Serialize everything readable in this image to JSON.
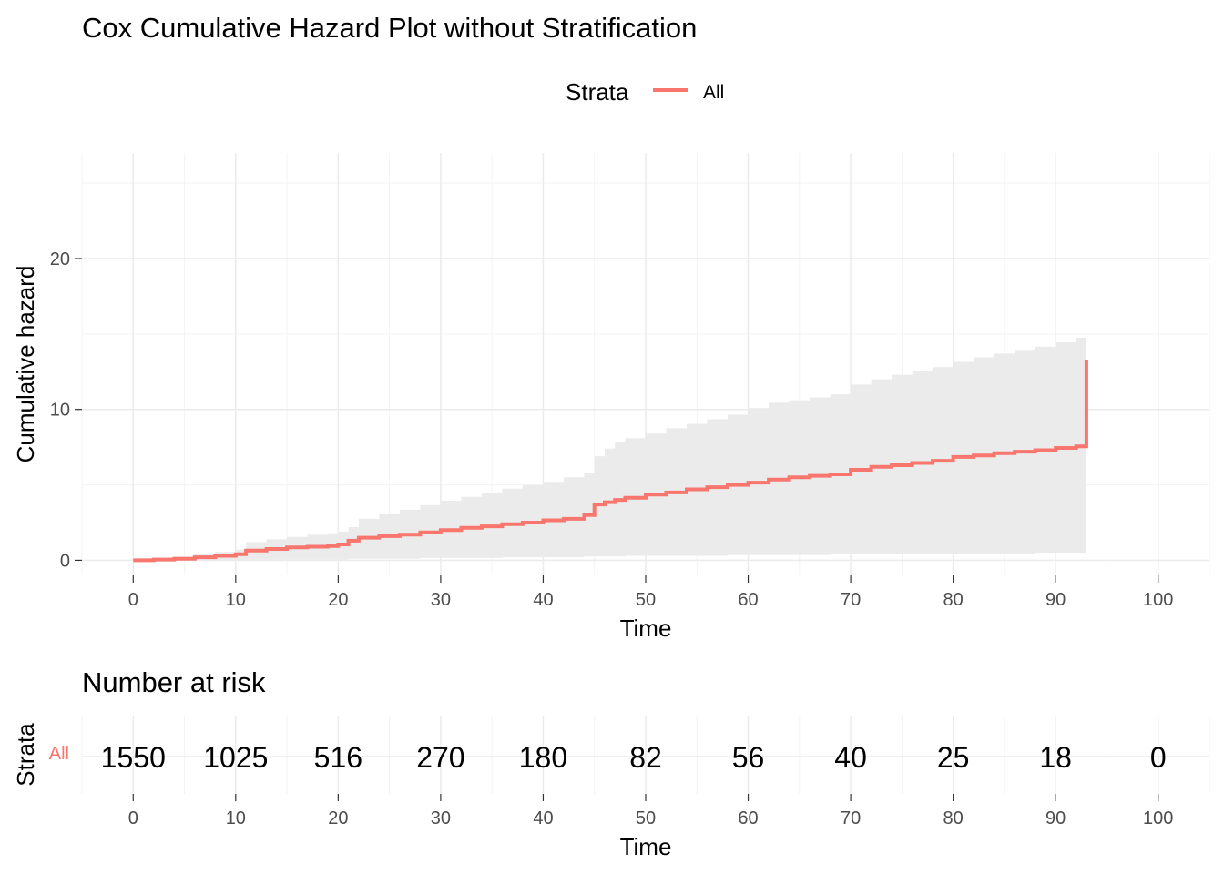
{
  "chart_data": [
    {
      "type": "line",
      "title": "Cox Cumulative Hazard Plot without Stratification",
      "xlabel": "Time",
      "ylabel": "Cumulative hazard",
      "xlim": [
        -5,
        105
      ],
      "ylim": [
        -1,
        27
      ],
      "x_ticks": [
        0,
        10,
        20,
        30,
        40,
        50,
        60,
        70,
        80,
        90,
        100
      ],
      "y_ticks": [
        0,
        10,
        20
      ],
      "grid": true,
      "legend": {
        "title": "Strata",
        "position": "top",
        "entries": [
          "All"
        ]
      },
      "series": [
        {
          "name": "All",
          "color": "#F8766D",
          "step": true,
          "x": [
            0,
            2,
            4,
            6,
            8,
            10,
            11,
            13,
            15,
            17,
            19,
            20,
            21,
            22,
            24,
            26,
            28,
            30,
            32,
            34,
            36,
            38,
            40,
            42,
            44,
            45,
            46,
            47,
            48,
            50,
            52,
            54,
            56,
            58,
            60,
            62,
            64,
            66,
            68,
            70,
            72,
            74,
            76,
            78,
            80,
            82,
            84,
            86,
            88,
            90,
            92,
            93,
            93
          ],
          "y": [
            0.0,
            0.05,
            0.1,
            0.2,
            0.3,
            0.4,
            0.65,
            0.75,
            0.85,
            0.9,
            0.95,
            1.05,
            1.3,
            1.5,
            1.6,
            1.7,
            1.85,
            2.0,
            2.15,
            2.25,
            2.4,
            2.5,
            2.65,
            2.75,
            3.0,
            3.7,
            3.85,
            4.0,
            4.15,
            4.35,
            4.5,
            4.7,
            4.85,
            5.0,
            5.15,
            5.35,
            5.5,
            5.6,
            5.7,
            6.0,
            6.2,
            6.3,
            6.45,
            6.6,
            6.85,
            6.95,
            7.1,
            7.2,
            7.3,
            7.45,
            7.55,
            7.65,
            13.3
          ]
        }
      ],
      "confidence_band": {
        "x": [
          0,
          2,
          4,
          6,
          8,
          10,
          11,
          13,
          15,
          17,
          19,
          20,
          21,
          22,
          24,
          26,
          28,
          30,
          32,
          34,
          36,
          38,
          40,
          42,
          44,
          45,
          46,
          47,
          48,
          50,
          52,
          54,
          56,
          58,
          60,
          62,
          64,
          66,
          68,
          70,
          72,
          74,
          76,
          78,
          80,
          82,
          84,
          86,
          88,
          90,
          92,
          93
        ],
        "lower": [
          0.0,
          0.0,
          0.0,
          0.0,
          0.0,
          0.0,
          0.05,
          0.05,
          0.05,
          0.05,
          0.05,
          0.05,
          0.1,
          0.1,
          0.1,
          0.1,
          0.15,
          0.15,
          0.15,
          0.15,
          0.2,
          0.2,
          0.2,
          0.2,
          0.25,
          0.25,
          0.25,
          0.25,
          0.3,
          0.3,
          0.3,
          0.3,
          0.3,
          0.35,
          0.35,
          0.35,
          0.35,
          0.35,
          0.4,
          0.4,
          0.4,
          0.4,
          0.4,
          0.45,
          0.45,
          0.45,
          0.45,
          0.45,
          0.5,
          0.5,
          0.5,
          0.5
        ],
        "upper": [
          0.05,
          0.15,
          0.25,
          0.4,
          0.55,
          0.7,
          1.2,
          1.4,
          1.55,
          1.7,
          1.8,
          1.9,
          2.2,
          2.75,
          3.05,
          3.35,
          3.65,
          3.95,
          4.2,
          4.45,
          4.75,
          5.0,
          5.2,
          5.5,
          5.8,
          6.9,
          7.4,
          7.85,
          8.1,
          8.4,
          8.75,
          9.05,
          9.35,
          9.65,
          10.1,
          10.45,
          10.6,
          10.8,
          11.0,
          11.65,
          12.0,
          12.3,
          12.55,
          12.8,
          13.15,
          13.45,
          13.7,
          13.95,
          14.15,
          14.45,
          14.75,
          14.75
        ]
      }
    },
    {
      "type": "table",
      "title": "Number at risk",
      "xlabel": "Time",
      "ylabel": "Strata",
      "xlim": [
        -5,
        105
      ],
      "x_ticks": [
        0,
        10,
        20,
        30,
        40,
        50,
        60,
        70,
        80,
        90,
        100
      ],
      "rows": [
        {
          "strata": "All",
          "color": "#F8766D",
          "values": [
            "1550",
            "1025",
            "516",
            "270",
            "180",
            "82",
            "56",
            "40",
            "25",
            "18",
            "0"
          ]
        }
      ]
    }
  ]
}
